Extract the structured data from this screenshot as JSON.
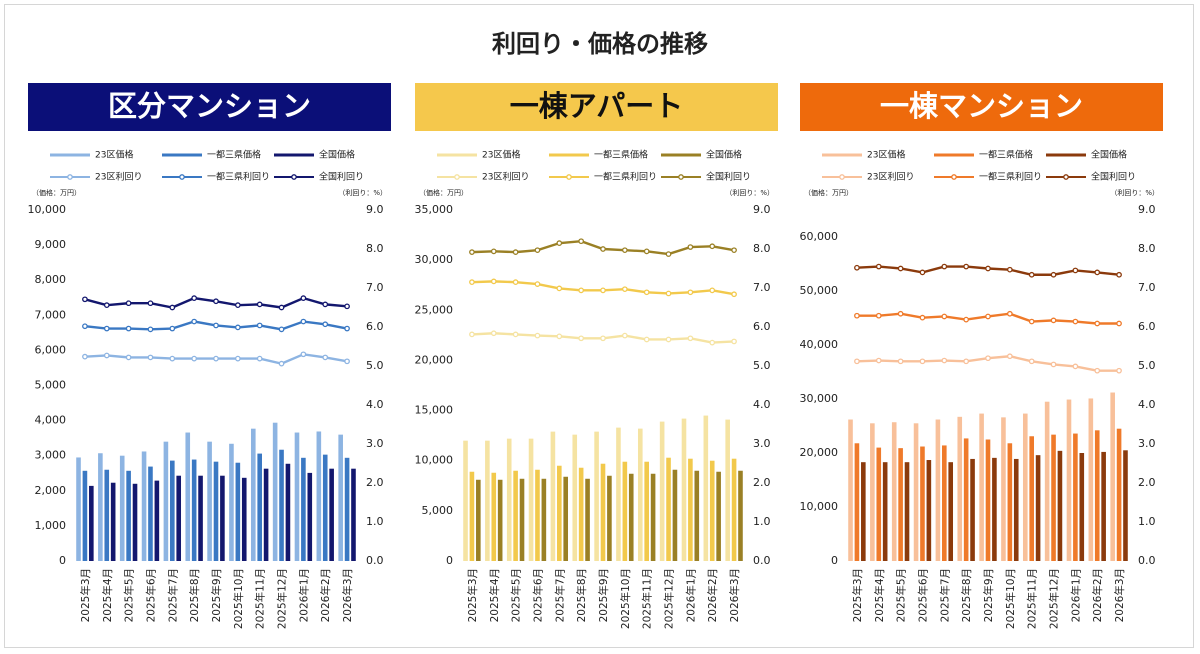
{
  "title": "利回り・価格の推移",
  "chart_data": [
    {
      "type": "combo",
      "title": "区分マンション",
      "header_color": "#0b0f78",
      "title_color": "#ffffff",
      "ylabel": "（価格：万円）",
      "y2label": "（利回り：%）",
      "categories": [
        "2025年3月",
        "2025年4月",
        "2025年5月",
        "2025年6月",
        "2025年7月",
        "2025年8月",
        "2025年9月",
        "2025年10月",
        "2025年11月",
        "2025年12月",
        "2026年1月",
        "2026年2月",
        "2026年3月"
      ],
      "ylim": [
        0,
        10000
      ],
      "yticks": [
        0,
        {
          "value": 1000,
          "label": "1,000"
        },
        {
          "value": 2000,
          "label": "2,000"
        },
        {
          "value": 3000,
          "label": "3,000"
        },
        {
          "value": 4000,
          "label": "4,000"
        },
        {
          "value": 5000,
          "label": "5,000"
        },
        {
          "value": 6000,
          "label": "6,000"
        },
        {
          "value": 7000,
          "label": "7,000"
        },
        {
          "value": 8000,
          "label": "8,000"
        },
        {
          "value": 9000,
          "label": "9,000"
        },
        {
          "value": 10000,
          "label": "10,000"
        }
      ],
      "y2lim": [
        0,
        9
      ],
      "y2ticks": [
        {
          "value": 0,
          "label": "0.0"
        },
        {
          "value": 1,
          "label": "1.0"
        },
        {
          "value": 2,
          "label": "2.0"
        },
        {
          "value": 3,
          "label": "3.0"
        },
        {
          "value": 4,
          "label": "4.0"
        },
        {
          "value": 5,
          "label": "5.0"
        },
        {
          "value": 6,
          "label": "6.0"
        },
        {
          "value": 7,
          "label": "7.0"
        },
        {
          "value": 8,
          "label": "8.0"
        },
        {
          "value": 9,
          "label": "9.0"
        }
      ],
      "grid": false,
      "series": [
        {
          "name": "23区価格",
          "type": "bar",
          "color": "#8db4e2",
          "values": [
            2950,
            3070,
            3000,
            3120,
            3400,
            3660,
            3400,
            3340,
            3770,
            3940,
            3660,
            3690,
            3600
          ]
        },
        {
          "name": "一都三県価格",
          "type": "bar",
          "color": "#3a78c3",
          "values": [
            2570,
            2600,
            2570,
            2690,
            2860,
            2890,
            2830,
            2800,
            3060,
            3170,
            2940,
            3030,
            2940
          ]
        },
        {
          "name": "全国価格",
          "type": "bar",
          "color": "#13176e",
          "values": [
            2140,
            2230,
            2200,
            2290,
            2430,
            2430,
            2430,
            2370,
            2630,
            2770,
            2510,
            2630,
            2630
          ]
        },
        {
          "name": "23区利回り",
          "type": "line",
          "axis": "y2",
          "color": "#8db4e2",
          "values": [
            5.24,
            5.27,
            5.22,
            5.22,
            5.19,
            5.19,
            5.19,
            5.19,
            5.19,
            5.06,
            5.3,
            5.22,
            5.12
          ]
        },
        {
          "name": "一都三県利回り",
          "type": "line",
          "axis": "y2",
          "color": "#3a78c3",
          "values": [
            6.02,
            5.96,
            5.96,
            5.94,
            5.96,
            6.14,
            6.04,
            5.99,
            6.04,
            5.94,
            6.14,
            6.07,
            5.96
          ]
        },
        {
          "name": "全国利回り",
          "type": "line",
          "axis": "y2",
          "color": "#13176e",
          "values": [
            6.71,
            6.56,
            6.61,
            6.61,
            6.5,
            6.74,
            6.66,
            6.56,
            6.58,
            6.5,
            6.74,
            6.58,
            6.53
          ]
        }
      ]
    },
    {
      "type": "combo",
      "title": "一棟アパート",
      "header_color": "#f5c84c",
      "title_color": "#111111",
      "ylabel": "（価格：万円）",
      "y2label": "（利回り：%）",
      "categories": [
        "2025年3月",
        "2025年4月",
        "2025年5月",
        "2025年6月",
        "2025年7月",
        "2025年8月",
        "2025年9月",
        "2025年10月",
        "2025年11月",
        "2025年12月",
        "2026年1月",
        "2026年2月",
        "2026年3月"
      ],
      "ylim": [
        0,
        35000
      ],
      "yticks": [
        0,
        {
          "value": 5000,
          "label": "5,000"
        },
        {
          "value": 10000,
          "label": "10,000"
        },
        {
          "value": 15000,
          "label": "15,000"
        },
        {
          "value": 20000,
          "label": "20,000"
        },
        {
          "value": 25000,
          "label": "25,000"
        },
        {
          "value": 30000,
          "label": "30,000"
        },
        {
          "value": 35000,
          "label": "35,000"
        }
      ],
      "y2lim": [
        0,
        9
      ],
      "y2ticks": [
        {
          "value": 0,
          "label": "0.0"
        },
        {
          "value": 1,
          "label": "1.0"
        },
        {
          "value": 2,
          "label": "2.0"
        },
        {
          "value": 3,
          "label": "3.0"
        },
        {
          "value": 4,
          "label": "4.0"
        },
        {
          "value": 5,
          "label": "5.0"
        },
        {
          "value": 6,
          "label": "6.0"
        },
        {
          "value": 7,
          "label": "7.0"
        },
        {
          "value": 8,
          "label": "8.0"
        },
        {
          "value": 9,
          "label": "9.0"
        }
      ],
      "grid": false,
      "series": [
        {
          "name": "23区価格",
          "type": "bar",
          "color": "#f5e3a2",
          "values": [
            12000,
            12000,
            12200,
            12200,
            12900,
            12600,
            12900,
            13300,
            13200,
            13900,
            14200,
            14500,
            14100
          ]
        },
        {
          "name": "一都三県価格",
          "type": "bar",
          "color": "#f2c94c",
          "values": [
            8900,
            8800,
            9000,
            9100,
            9500,
            9300,
            9700,
            9900,
            9900,
            10300,
            10200,
            10000,
            10200
          ]
        },
        {
          "name": "全国価格",
          "type": "bar",
          "color": "#9a8025",
          "values": [
            8100,
            8100,
            8200,
            8200,
            8400,
            8200,
            8500,
            8700,
            8700,
            9100,
            9000,
            8900,
            9000
          ]
        },
        {
          "name": "23区利回り",
          "type": "line",
          "axis": "y2",
          "color": "#f5e3a2",
          "values": [
            5.81,
            5.84,
            5.81,
            5.78,
            5.76,
            5.71,
            5.71,
            5.78,
            5.68,
            5.68,
            5.71,
            5.6,
            5.63
          ]
        },
        {
          "name": "一都三県利回り",
          "type": "line",
          "axis": "y2",
          "color": "#f2c94c",
          "values": [
            7.15,
            7.17,
            7.15,
            7.1,
            6.99,
            6.94,
            6.94,
            6.97,
            6.89,
            6.86,
            6.89,
            6.94,
            6.84
          ]
        },
        {
          "name": "全国利回り",
          "type": "line",
          "axis": "y2",
          "color": "#9a8025",
          "values": [
            7.92,
            7.94,
            7.92,
            7.97,
            8.15,
            8.2,
            8.0,
            7.97,
            7.94,
            7.87,
            8.05,
            8.07,
            7.97
          ]
        }
      ]
    },
    {
      "type": "combo",
      "title": "一棟マンション",
      "header_color": "#ee6a0c",
      "title_color": "#ffffff",
      "ylabel": "（価格：万円）",
      "y2label": "（利回り：%）",
      "categories": [
        "2025年3月",
        "2025年4月",
        "2025年5月",
        "2025年6月",
        "2025年7月",
        "2025年8月",
        "2025年9月",
        "2025年10月",
        "2025年11月",
        "2025年12月",
        "2026年1月",
        "2026年2月",
        "2026年3月"
      ],
      "ylim": [
        0,
        65000
      ],
      "yticks": [
        0,
        {
          "value": 10000,
          "label": "10,000"
        },
        {
          "value": 20000,
          "label": "20,000"
        },
        {
          "value": 30000,
          "label": "30,000"
        },
        {
          "value": 40000,
          "label": "40,000"
        },
        {
          "value": 50000,
          "label": "50,000"
        },
        {
          "value": 60000,
          "label": "60,000"
        }
      ],
      "y2lim": [
        0,
        9
      ],
      "y2ticks": [
        {
          "value": 0,
          "label": "0.0"
        },
        {
          "value": 1,
          "label": "1.0"
        },
        {
          "value": 2,
          "label": "2.0"
        },
        {
          "value": 3,
          "label": "3.0"
        },
        {
          "value": 4,
          "label": "4.0"
        },
        {
          "value": 5,
          "label": "5.0"
        },
        {
          "value": 6,
          "label": "6.0"
        },
        {
          "value": 7,
          "label": "7.0"
        },
        {
          "value": 8,
          "label": "8.0"
        },
        {
          "value": 9,
          "label": "9.0"
        }
      ],
      "grid": false,
      "series": [
        {
          "name": "23区価格",
          "type": "bar",
          "color": "#f8c09a",
          "values": [
            26200,
            25500,
            25700,
            25500,
            26200,
            26700,
            27300,
            26600,
            27300,
            29500,
            29900,
            30100,
            31200
          ]
        },
        {
          "name": "一都三県価格",
          "type": "bar",
          "color": "#ef7a2a",
          "values": [
            21800,
            21000,
            20900,
            21200,
            21400,
            22700,
            22500,
            21800,
            23100,
            23400,
            23600,
            24200,
            24500
          ]
        },
        {
          "name": "全国価格",
          "type": "bar",
          "color": "#8b3a0c",
          "values": [
            18300,
            18300,
            18300,
            18700,
            18300,
            18900,
            19100,
            18900,
            19600,
            20400,
            20000,
            20200,
            20500
          ]
        },
        {
          "name": "23区利回り",
          "type": "line",
          "axis": "y2",
          "color": "#f8c09a",
          "values": [
            5.12,
            5.14,
            5.12,
            5.12,
            5.14,
            5.12,
            5.2,
            5.25,
            5.12,
            5.04,
            4.99,
            4.88,
            4.88
          ]
        },
        {
          "name": "一都三県利回り",
          "type": "line",
          "axis": "y2",
          "color": "#ef7a2a",
          "values": [
            6.29,
            6.29,
            6.34,
            6.24,
            6.27,
            6.19,
            6.27,
            6.34,
            6.14,
            6.17,
            6.14,
            6.09,
            6.09
          ]
        },
        {
          "name": "全国利回り",
          "type": "line",
          "axis": "y2",
          "color": "#8b3a0c",
          "values": [
            7.52,
            7.55,
            7.5,
            7.4,
            7.55,
            7.55,
            7.5,
            7.47,
            7.34,
            7.34,
            7.45,
            7.4,
            7.34
          ]
        }
      ]
    }
  ]
}
